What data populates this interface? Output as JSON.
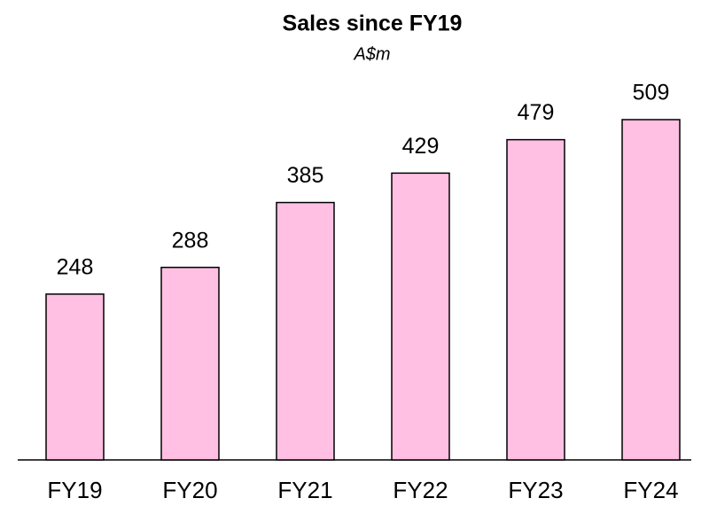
{
  "chart_data": {
    "type": "bar",
    "title": "Sales since FY19",
    "subtitle": "A$m",
    "categories": [
      "FY19",
      "FY20",
      "FY21",
      "FY22",
      "FY23",
      "FY24"
    ],
    "values": [
      248,
      288,
      385,
      429,
      479,
      509
    ],
    "color": "#ffc0e3"
  }
}
